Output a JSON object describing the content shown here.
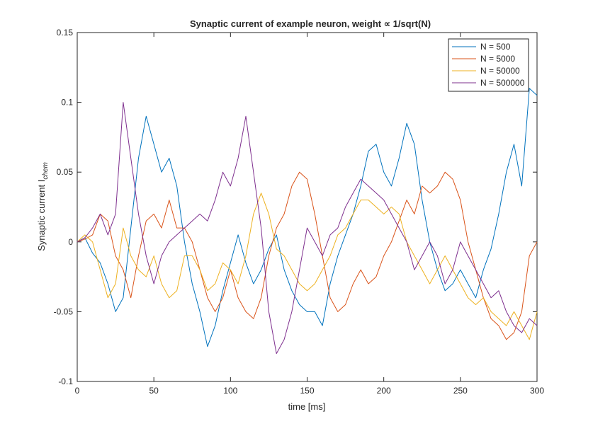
{
  "figure": {
    "title": "Synaptic current of example neuron, weight ∝ 1/sqrt(N)",
    "ylabel_main": "Synaptic current I",
    "ylabel_sub": "chem",
    "xlabel": "time [ms]"
  },
  "chart_data": {
    "type": "line",
    "title": "Synaptic current of example neuron, weight ∝ 1/sqrt(N)",
    "xlabel": "time [ms]",
    "ylabel": "Synaptic current I_chem",
    "xlim": [
      0,
      300
    ],
    "ylim": [
      -0.1,
      0.15
    ],
    "xticks": [
      0,
      50,
      100,
      150,
      200,
      250,
      300
    ],
    "xtick_labels": [
      "0",
      "50",
      "100",
      "150",
      "200",
      "250",
      "300"
    ],
    "yticks": [
      -0.1,
      -0.05,
      0,
      0.05,
      0.1,
      0.15
    ],
    "ytick_labels": [
      "-0.1",
      "-0.05",
      "0",
      "0.05",
      "0.1",
      "0.15"
    ],
    "grid": false,
    "legend_position": "top-right",
    "x": [
      0,
      5,
      10,
      15,
      20,
      25,
      30,
      35,
      40,
      45,
      50,
      55,
      60,
      65,
      70,
      75,
      80,
      85,
      90,
      95,
      100,
      105,
      110,
      115,
      120,
      125,
      130,
      135,
      140,
      145,
      150,
      155,
      160,
      165,
      170,
      175,
      180,
      185,
      190,
      195,
      200,
      205,
      210,
      215,
      220,
      225,
      230,
      235,
      240,
      245,
      250,
      255,
      260,
      265,
      270,
      275,
      280,
      285,
      290,
      295,
      300
    ],
    "series": [
      {
        "name": "N = 500",
        "color": "#0072BD",
        "values": [
          0.0,
          0.003,
          -0.008,
          -0.015,
          -0.03,
          -0.05,
          -0.04,
          0.01,
          0.06,
          0.09,
          0.07,
          0.05,
          0.06,
          0.04,
          0.0,
          -0.03,
          -0.05,
          -0.075,
          -0.06,
          -0.035,
          -0.015,
          0.005,
          -0.015,
          -0.03,
          -0.02,
          -0.005,
          0.005,
          -0.02,
          -0.035,
          -0.045,
          -0.05,
          -0.05,
          -0.06,
          -0.03,
          -0.01,
          0.005,
          0.02,
          0.04,
          0.065,
          0.07,
          0.05,
          0.04,
          0.06,
          0.085,
          0.07,
          0.03,
          0.0,
          -0.02,
          -0.035,
          -0.03,
          -0.02,
          -0.03,
          -0.04,
          -0.02,
          -0.005,
          0.02,
          0.05,
          0.07,
          0.04,
          0.11,
          0.105
        ]
      },
      {
        "name": "N = 5000",
        "color": "#D95319",
        "values": [
          0.0,
          0.002,
          0.005,
          0.02,
          0.015,
          -0.01,
          -0.02,
          -0.04,
          -0.01,
          0.015,
          0.02,
          0.01,
          0.03,
          0.01,
          0.01,
          0.0,
          -0.02,
          -0.04,
          -0.05,
          -0.04,
          -0.02,
          -0.04,
          -0.05,
          -0.055,
          -0.04,
          -0.01,
          0.01,
          0.02,
          0.04,
          0.05,
          0.045,
          0.02,
          -0.01,
          -0.04,
          -0.05,
          -0.045,
          -0.03,
          -0.02,
          -0.03,
          -0.025,
          -0.01,
          0.0,
          0.015,
          0.03,
          0.02,
          0.04,
          0.035,
          0.04,
          0.05,
          0.045,
          0.03,
          0.0,
          -0.02,
          -0.04,
          -0.055,
          -0.06,
          -0.07,
          -0.065,
          -0.05,
          -0.01,
          0.0
        ]
      },
      {
        "name": "N = 50000",
        "color": "#EDB120",
        "values": [
          0.0,
          0.005,
          0.0,
          -0.02,
          -0.04,
          -0.03,
          0.01,
          -0.01,
          -0.02,
          -0.025,
          -0.01,
          -0.03,
          -0.04,
          -0.035,
          -0.01,
          -0.01,
          -0.02,
          -0.035,
          -0.03,
          -0.015,
          -0.02,
          -0.03,
          -0.01,
          0.02,
          0.035,
          0.02,
          -0.005,
          -0.01,
          -0.02,
          -0.03,
          -0.035,
          -0.03,
          -0.02,
          -0.01,
          0.005,
          0.01,
          0.02,
          0.03,
          0.03,
          0.025,
          0.02,
          0.025,
          0.02,
          0.0,
          -0.01,
          -0.02,
          -0.03,
          -0.02,
          -0.01,
          -0.02,
          -0.03,
          -0.04,
          -0.045,
          -0.04,
          -0.05,
          -0.055,
          -0.06,
          -0.05,
          -0.06,
          -0.07,
          -0.05
        ]
      },
      {
        "name": "N = 500000",
        "color": "#7E2F8E",
        "values": [
          0.0,
          0.003,
          0.01,
          0.02,
          0.005,
          0.02,
          0.1,
          0.06,
          0.02,
          -0.01,
          -0.03,
          -0.01,
          0.0,
          0.005,
          0.01,
          0.015,
          0.02,
          0.015,
          0.03,
          0.05,
          0.04,
          0.06,
          0.09,
          0.05,
          0.01,
          -0.05,
          -0.08,
          -0.07,
          -0.05,
          -0.02,
          0.01,
          0.0,
          -0.01,
          0.005,
          0.01,
          0.025,
          0.035,
          0.045,
          0.04,
          0.035,
          0.03,
          0.02,
          0.01,
          0.0,
          -0.02,
          -0.01,
          0.0,
          -0.01,
          -0.03,
          -0.02,
          0.0,
          -0.01,
          -0.02,
          -0.03,
          -0.04,
          -0.035,
          -0.05,
          -0.06,
          -0.065,
          -0.055,
          -0.06
        ]
      }
    ]
  }
}
